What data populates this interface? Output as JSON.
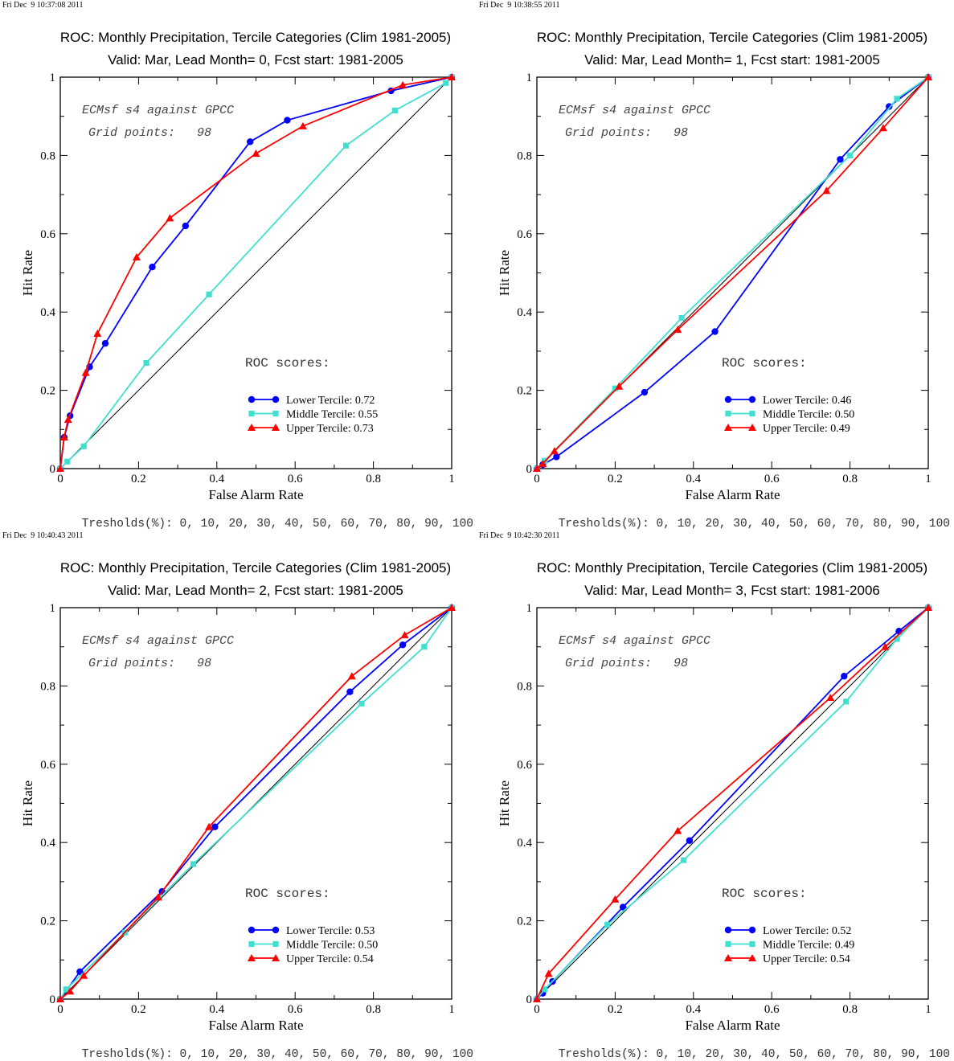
{
  "colors": {
    "lower": "#0000ff",
    "middle": "#40e0d0",
    "upper": "#ff0000",
    "diagonal": "#000000"
  },
  "chart_data": [
    {
      "type": "line",
      "timestamp": "Fri Dec  9 10:37:08 2011",
      "title": "ROC: Monthly Precipitation, Tercile Categories (Clim 1981-2005)",
      "subtitle": "Valid: Mar, Lead Month= 0, Fcst start: 1981-2005",
      "xlabel": "False Alarm Rate",
      "ylabel": "Hit Rate",
      "xlim": [
        0,
        1
      ],
      "ylim": [
        0,
        1
      ],
      "xticks": [
        "0",
        "0.2",
        "0.4",
        "0.6",
        "0.8",
        "1"
      ],
      "yticks": [
        "0",
        "0.2",
        "0.4",
        "0.6",
        "0.8",
        "1"
      ],
      "info1": "ECMsf s4 against GPCC",
      "info2": "Grid points:   98",
      "scores_title": "ROC scores:",
      "thresholds": "Tresholds(%): 0, 10, 20, 30, 40, 50, 60, 70, 80, 90, 100",
      "series": [
        {
          "name": "Lower Tercile: 0.72",
          "marker": "circle",
          "color_key": "lower",
          "x": [
            0,
            0.01,
            0.025,
            0.075,
            0.115,
            0.235,
            0.32,
            0.485,
            0.58,
            0.845,
            1.0
          ],
          "y": [
            0,
            0.08,
            0.135,
            0.26,
            0.32,
            0.515,
            0.62,
            0.835,
            0.89,
            0.965,
            1.0
          ]
        },
        {
          "name": "Middle Tercile: 0.55",
          "marker": "square",
          "color_key": "middle",
          "x": [
            0,
            0.018,
            0.06,
            0.22,
            0.38,
            0.73,
            0.855,
            0.985,
            1.0
          ],
          "y": [
            0,
            0.018,
            0.057,
            0.27,
            0.445,
            0.825,
            0.915,
            0.985,
            1.0
          ]
        },
        {
          "name": "Upper Tercile: 0.73",
          "marker": "triangle",
          "color_key": "upper",
          "x": [
            0,
            0.01,
            0.02,
            0.065,
            0.095,
            0.195,
            0.28,
            0.5,
            0.62,
            0.875,
            1.0
          ],
          "y": [
            0,
            0.08,
            0.125,
            0.245,
            0.345,
            0.54,
            0.64,
            0.805,
            0.875,
            0.98,
            1.0
          ]
        }
      ]
    },
    {
      "type": "line",
      "timestamp": "Fri Dec  9 10:38:55 2011",
      "title": "ROC: Monthly Precipitation, Tercile Categories (Clim 1981-2005)",
      "subtitle": "Valid: Mar, Lead Month= 1, Fcst start: 1981-2005",
      "xlabel": "False Alarm Rate",
      "ylabel": "Hit Rate",
      "xlim": [
        0,
        1
      ],
      "ylim": [
        0,
        1
      ],
      "xticks": [
        "0",
        "0.2",
        "0.4",
        "0.6",
        "0.8",
        "1"
      ],
      "yticks": [
        "0",
        "0.2",
        "0.4",
        "0.6",
        "0.8",
        "1"
      ],
      "info1": "ECMsf s4 against GPCC",
      "info2": "Grid points:   98",
      "scores_title": "ROC scores:",
      "thresholds": "Tresholds(%): 0, 10, 20, 30, 40, 50, 60, 70, 80, 90, 100",
      "series": [
        {
          "name": "Lower Tercile: 0.46",
          "marker": "circle",
          "color_key": "lower",
          "x": [
            0,
            0.015,
            0.05,
            0.275,
            0.455,
            0.775,
            0.9,
            1.0
          ],
          "y": [
            0,
            0.01,
            0.03,
            0.195,
            0.35,
            0.79,
            0.925,
            1.0
          ]
        },
        {
          "name": "Middle Tercile: 0.50",
          "marker": "square",
          "color_key": "middle",
          "x": [
            0,
            0.02,
            0.2,
            0.37,
            0.8,
            0.92,
            1.0
          ],
          "y": [
            0,
            0.02,
            0.205,
            0.385,
            0.8,
            0.945,
            1.0
          ]
        },
        {
          "name": "Upper Tercile: 0.49",
          "marker": "triangle",
          "color_key": "upper",
          "x": [
            0,
            0.015,
            0.045,
            0.21,
            0.36,
            0.74,
            0.885,
            1.0
          ],
          "y": [
            0,
            0.012,
            0.045,
            0.21,
            0.355,
            0.71,
            0.87,
            1.0
          ]
        }
      ]
    },
    {
      "type": "line",
      "timestamp": "Fri Dec  9 10:40:43 2011",
      "title": "ROC: Monthly Precipitation, Tercile Categories (Clim 1981-2005)",
      "subtitle": "Valid: Mar, Lead Month= 2, Fcst start: 1981-2005",
      "xlabel": "False Alarm Rate",
      "ylabel": "Hit Rate",
      "xlim": [
        0,
        1
      ],
      "ylim": [
        0,
        1
      ],
      "xticks": [
        "0",
        "0.2",
        "0.4",
        "0.6",
        "0.8",
        "1"
      ],
      "yticks": [
        "0",
        "0.2",
        "0.4",
        "0.6",
        "0.8",
        "1"
      ],
      "info1": "ECMsf s4 against GPCC",
      "info2": "Grid points:   98",
      "scores_title": "ROC scores:",
      "thresholds": "Tresholds(%): 0, 10, 20, 30, 40, 50, 60, 70, 80, 90, 100",
      "series": [
        {
          "name": "Lower Tercile: 0.53",
          "marker": "circle",
          "color_key": "lower",
          "x": [
            0,
            0.05,
            0.26,
            0.395,
            0.74,
            0.875,
            1.0
          ],
          "y": [
            0,
            0.07,
            0.275,
            0.44,
            0.785,
            0.905,
            1.0
          ]
        },
        {
          "name": "Middle Tercile: 0.50",
          "marker": "square",
          "color_key": "middle",
          "x": [
            0,
            0.015,
            0.165,
            0.34,
            0.77,
            0.93,
            1.0
          ],
          "y": [
            0,
            0.025,
            0.17,
            0.345,
            0.755,
            0.9,
            1.0
          ]
        },
        {
          "name": "Upper Tercile: 0.54",
          "marker": "triangle",
          "color_key": "upper",
          "x": [
            0,
            0.025,
            0.06,
            0.25,
            0.38,
            0.745,
            0.88,
            1.0
          ],
          "y": [
            0,
            0.02,
            0.06,
            0.26,
            0.44,
            0.825,
            0.93,
            1.0
          ]
        }
      ]
    },
    {
      "type": "line",
      "timestamp": "Fri Dec  9 10:42:30 2011",
      "title": "ROC: Monthly Precipitation, Tercile Categories (Clim 1981-2005)",
      "subtitle": "Valid: Mar, Lead Month= 3, Fcst start: 1981-2006",
      "xlabel": "False Alarm Rate",
      "ylabel": "Hit Rate",
      "xlim": [
        0,
        1
      ],
      "ylim": [
        0,
        1
      ],
      "xticks": [
        "0",
        "0.2",
        "0.4",
        "0.6",
        "0.8",
        "1"
      ],
      "yticks": [
        "0",
        "0.2",
        "0.4",
        "0.6",
        "0.8",
        "1"
      ],
      "info1": "ECMsf s4 against GPCC",
      "info2": "Grid points:   98",
      "scores_title": "ROC scores:",
      "thresholds": "Tresholds(%): 0, 10, 20, 30, 40, 50, 60, 70, 80, 90, 100",
      "series": [
        {
          "name": "Lower Tercile: 0.52",
          "marker": "circle",
          "color_key": "lower",
          "x": [
            0,
            0.015,
            0.04,
            0.22,
            0.39,
            0.785,
            0.925,
            1.0
          ],
          "y": [
            0,
            0.015,
            0.045,
            0.235,
            0.405,
            0.825,
            0.94,
            1.0
          ]
        },
        {
          "name": "Middle Tercile: 0.49",
          "marker": "square",
          "color_key": "middle",
          "x": [
            0,
            0.02,
            0.18,
            0.375,
            0.79,
            0.92,
            1.0
          ],
          "y": [
            0,
            0.025,
            0.19,
            0.355,
            0.76,
            0.92,
            1.0
          ]
        },
        {
          "name": "Upper Tercile: 0.54",
          "marker": "triangle",
          "color_key": "upper",
          "x": [
            0,
            0.03,
            0.2,
            0.36,
            0.75,
            0.89,
            1.0
          ],
          "y": [
            0,
            0.065,
            0.255,
            0.43,
            0.77,
            0.9,
            1.0
          ]
        }
      ]
    }
  ]
}
